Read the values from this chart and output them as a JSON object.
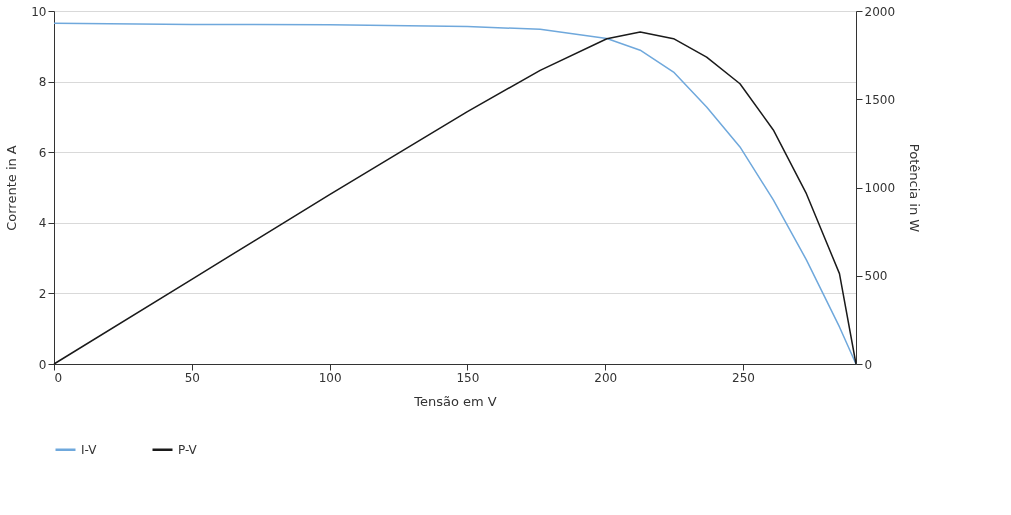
{
  "chart_data": {
    "type": "line",
    "xlabel": "Tensão em V",
    "ylabel": "Corrente in A",
    "y2label": "Potência in W",
    "xlim": [
      0,
      291
    ],
    "xticks": [
      0,
      50,
      100,
      150,
      200,
      250
    ],
    "ylim": [
      0,
      10
    ],
    "yticks": [
      0,
      2,
      4,
      6,
      8,
      10
    ],
    "y2lim": [
      0,
      2000
    ],
    "y2ticks": [
      0,
      500,
      1000,
      1500,
      2000
    ],
    "grid": "y",
    "legend": "bottom",
    "marker": "none",
    "line_style": "solid",
    "series": [
      {
        "name": "I-V",
        "color": "#6fa8dc",
        "x": [
          0,
          50,
          100,
          150,
          176.4,
          200.6,
          212.7,
          224.8,
          236.8,
          248.9,
          261,
          273,
          285,
          291
        ],
        "values": [
          9.65,
          9.62,
          9.61,
          9.56,
          9.48,
          9.22,
          8.89,
          8.27,
          7.28,
          6.15,
          4.65,
          2.95,
          1.05,
          0
        ]
      },
      {
        "name": "P-V",
        "color": "#1a1a1a",
        "axis": "y2",
        "x": [
          0,
          50,
          100,
          150,
          176.4,
          200.6,
          212.7,
          224.8,
          236.8,
          248.9,
          261,
          273,
          285,
          291
        ],
        "values": [
          0,
          480,
          960,
          1430,
          1664,
          1843,
          1881,
          1843,
          1739,
          1588,
          1326,
          965,
          512,
          0
        ]
      }
    ]
  }
}
